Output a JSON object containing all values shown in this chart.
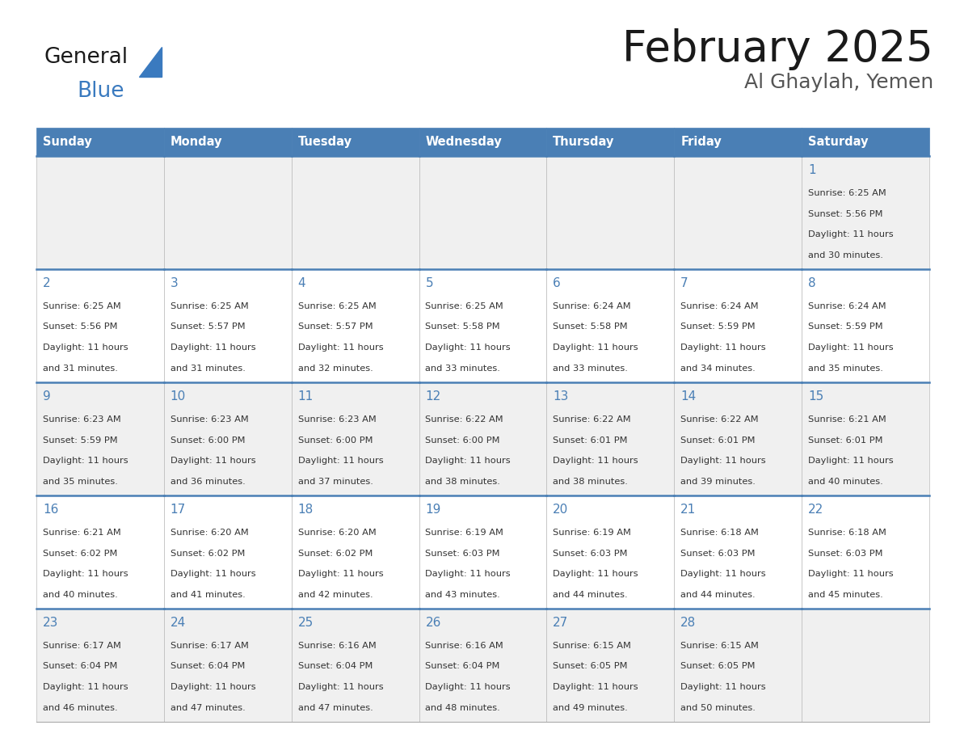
{
  "title": "February 2025",
  "subtitle": "Al Ghaylah, Yemen",
  "header_color": "#4a7fb5",
  "header_text_color": "#ffffff",
  "cell_bg_even": "#f0f0f0",
  "cell_bg_odd": "#ffffff",
  "day_number_color": "#4a7fb5",
  "text_color": "#333333",
  "line_color": "#4a7fb5",
  "days_of_week": [
    "Sunday",
    "Monday",
    "Tuesday",
    "Wednesday",
    "Thursday",
    "Friday",
    "Saturday"
  ],
  "logo_general_color": "#1a1a1a",
  "logo_blue_color": "#3a7abf",
  "logo_triangle_color": "#3a7abf",
  "weeks": [
    [
      {
        "day": null,
        "sunrise": null,
        "sunset": null,
        "daylight": null
      },
      {
        "day": null,
        "sunrise": null,
        "sunset": null,
        "daylight": null
      },
      {
        "day": null,
        "sunrise": null,
        "sunset": null,
        "daylight": null
      },
      {
        "day": null,
        "sunrise": null,
        "sunset": null,
        "daylight": null
      },
      {
        "day": null,
        "sunrise": null,
        "sunset": null,
        "daylight": null
      },
      {
        "day": null,
        "sunrise": null,
        "sunset": null,
        "daylight": null
      },
      {
        "day": 1,
        "sunrise": "6:25 AM",
        "sunset": "5:56 PM",
        "daylight": "11 hours and 30 minutes."
      }
    ],
    [
      {
        "day": 2,
        "sunrise": "6:25 AM",
        "sunset": "5:56 PM",
        "daylight": "11 hours and 31 minutes."
      },
      {
        "day": 3,
        "sunrise": "6:25 AM",
        "sunset": "5:57 PM",
        "daylight": "11 hours and 31 minutes."
      },
      {
        "day": 4,
        "sunrise": "6:25 AM",
        "sunset": "5:57 PM",
        "daylight": "11 hours and 32 minutes."
      },
      {
        "day": 5,
        "sunrise": "6:25 AM",
        "sunset": "5:58 PM",
        "daylight": "11 hours and 33 minutes."
      },
      {
        "day": 6,
        "sunrise": "6:24 AM",
        "sunset": "5:58 PM",
        "daylight": "11 hours and 33 minutes."
      },
      {
        "day": 7,
        "sunrise": "6:24 AM",
        "sunset": "5:59 PM",
        "daylight": "11 hours and 34 minutes."
      },
      {
        "day": 8,
        "sunrise": "6:24 AM",
        "sunset": "5:59 PM",
        "daylight": "11 hours and 35 minutes."
      }
    ],
    [
      {
        "day": 9,
        "sunrise": "6:23 AM",
        "sunset": "5:59 PM",
        "daylight": "11 hours and 35 minutes."
      },
      {
        "day": 10,
        "sunrise": "6:23 AM",
        "sunset": "6:00 PM",
        "daylight": "11 hours and 36 minutes."
      },
      {
        "day": 11,
        "sunrise": "6:23 AM",
        "sunset": "6:00 PM",
        "daylight": "11 hours and 37 minutes."
      },
      {
        "day": 12,
        "sunrise": "6:22 AM",
        "sunset": "6:00 PM",
        "daylight": "11 hours and 38 minutes."
      },
      {
        "day": 13,
        "sunrise": "6:22 AM",
        "sunset": "6:01 PM",
        "daylight": "11 hours and 38 minutes."
      },
      {
        "day": 14,
        "sunrise": "6:22 AM",
        "sunset": "6:01 PM",
        "daylight": "11 hours and 39 minutes."
      },
      {
        "day": 15,
        "sunrise": "6:21 AM",
        "sunset": "6:01 PM",
        "daylight": "11 hours and 40 minutes."
      }
    ],
    [
      {
        "day": 16,
        "sunrise": "6:21 AM",
        "sunset": "6:02 PM",
        "daylight": "11 hours and 40 minutes."
      },
      {
        "day": 17,
        "sunrise": "6:20 AM",
        "sunset": "6:02 PM",
        "daylight": "11 hours and 41 minutes."
      },
      {
        "day": 18,
        "sunrise": "6:20 AM",
        "sunset": "6:02 PM",
        "daylight": "11 hours and 42 minutes."
      },
      {
        "day": 19,
        "sunrise": "6:19 AM",
        "sunset": "6:03 PM",
        "daylight": "11 hours and 43 minutes."
      },
      {
        "day": 20,
        "sunrise": "6:19 AM",
        "sunset": "6:03 PM",
        "daylight": "11 hours and 44 minutes."
      },
      {
        "day": 21,
        "sunrise": "6:18 AM",
        "sunset": "6:03 PM",
        "daylight": "11 hours and 44 minutes."
      },
      {
        "day": 22,
        "sunrise": "6:18 AM",
        "sunset": "6:03 PM",
        "daylight": "11 hours and 45 minutes."
      }
    ],
    [
      {
        "day": 23,
        "sunrise": "6:17 AM",
        "sunset": "6:04 PM",
        "daylight": "11 hours and 46 minutes."
      },
      {
        "day": 24,
        "sunrise": "6:17 AM",
        "sunset": "6:04 PM",
        "daylight": "11 hours and 47 minutes."
      },
      {
        "day": 25,
        "sunrise": "6:16 AM",
        "sunset": "6:04 PM",
        "daylight": "11 hours and 47 minutes."
      },
      {
        "day": 26,
        "sunrise": "6:16 AM",
        "sunset": "6:04 PM",
        "daylight": "11 hours and 48 minutes."
      },
      {
        "day": 27,
        "sunrise": "6:15 AM",
        "sunset": "6:05 PM",
        "daylight": "11 hours and 49 minutes."
      },
      {
        "day": 28,
        "sunrise": "6:15 AM",
        "sunset": "6:05 PM",
        "daylight": "11 hours and 50 minutes."
      },
      {
        "day": null,
        "sunrise": null,
        "sunset": null,
        "daylight": null
      }
    ]
  ]
}
